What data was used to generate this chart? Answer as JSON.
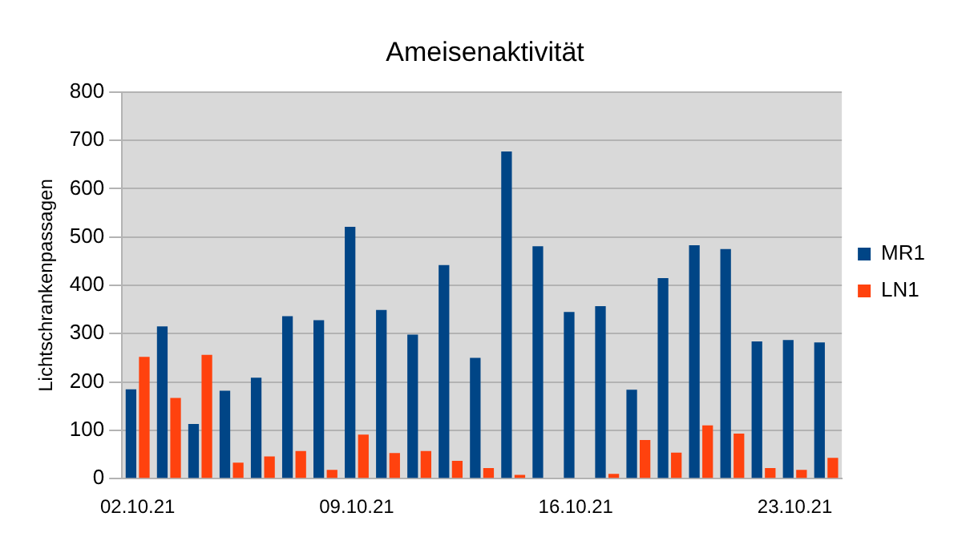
{
  "chart_data": {
    "type": "bar",
    "title": "Ameisenaktivität",
    "ylabel": "Lichtschrankenpassagen",
    "categories": [
      "02.10.21",
      null,
      null,
      null,
      null,
      null,
      null,
      "09.10.21",
      null,
      null,
      null,
      null,
      null,
      null,
      "16.10.21",
      null,
      null,
      null,
      null,
      null,
      null,
      "23.10.21",
      null
    ],
    "series": [
      {
        "name": "MR1",
        "color": "#004586",
        "values": [
          185,
          315,
          113,
          182,
          209,
          336,
          328,
          521,
          349,
          298,
          442,
          250,
          677,
          481,
          345,
          357,
          184,
          415,
          483,
          475,
          284,
          287,
          282
        ]
      },
      {
        "name": "LN1",
        "color": "#ff420e",
        "values": [
          252,
          167,
          256,
          33,
          46,
          57,
          18,
          91,
          53,
          57,
          37,
          22,
          8,
          null,
          null,
          10,
          80,
          54,
          110,
          93,
          22,
          18,
          43
        ]
      }
    ],
    "ylim": [
      0,
      800
    ],
    "yticks": [
      0,
      100,
      200,
      300,
      400,
      500,
      600,
      700,
      800
    ],
    "grid": "y",
    "legend": "right"
  }
}
